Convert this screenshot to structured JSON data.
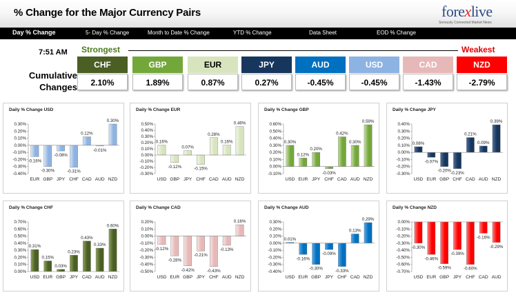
{
  "header": {
    "title": "% Change for the Major Currency Pairs"
  },
  "logo": {
    "brand_left": "fore",
    "brand_x": "x",
    "brand_right": "live",
    "tagline": "Seriously Connected Market News"
  },
  "tabs": [
    {
      "label": "Day % Change",
      "active": true
    },
    {
      "label": "5- Day % Change"
    },
    {
      "label": "Month to Date % Change"
    },
    {
      "label": "YTD % Change"
    },
    {
      "label": "Data Sheet"
    },
    {
      "label": "EOD % Change"
    }
  ],
  "summary": {
    "time": "7:51 AM",
    "label": "Cumulative Changes",
    "strongest_label": "Strongest",
    "weakest_label": "Weakest",
    "rankings": [
      {
        "currency": "CHF",
        "value": "2.10%",
        "bg": "#4b5e24",
        "fg": "#ffffff"
      },
      {
        "currency": "GBP",
        "value": "1.89%",
        "bg": "#74a73a",
        "fg": "#ffffff"
      },
      {
        "currency": "EUR",
        "value": "0.87%",
        "bg": "#d7e4bd",
        "fg": "#000000"
      },
      {
        "currency": "JPY",
        "value": "0.27%",
        "bg": "#17365d",
        "fg": "#ffffff"
      },
      {
        "currency": "AUD",
        "value": "-0.45%",
        "bg": "#0070c0",
        "fg": "#ffffff"
      },
      {
        "currency": "USD",
        "value": "-0.45%",
        "bg": "#8db3e2",
        "fg": "#ffffff"
      },
      {
        "currency": "CAD",
        "value": "-1.43%",
        "bg": "#e6b9b8",
        "fg": "#ffffff"
      },
      {
        "currency": "NZD",
        "value": "-2.79%",
        "bg": "#ff0000",
        "fg": "#ffffff"
      }
    ]
  },
  "chart_data": [
    {
      "type": "bar",
      "title": "Daily % Change USD",
      "color": "#8db3e2",
      "color_light": "#dce7f5",
      "categories": [
        "EUR",
        "GBP",
        "JPY",
        "CHF",
        "CAD",
        "AUD",
        "NZD"
      ],
      "values": [
        -0.16,
        -0.3,
        -0.08,
        -0.31,
        0.12,
        -0.01,
        0.3
      ],
      "labels": [
        "-0.16%",
        "-0.30%",
        "-0.08%",
        "-0.31%",
        "0.12%",
        "-0.01%",
        "0.30%"
      ],
      "ylim": [
        -0.4,
        0.3
      ],
      "yticks": [
        0.3,
        0.2,
        0.1,
        0.0,
        -0.1,
        -0.2,
        -0.3,
        -0.4
      ],
      "ytick_labels": [
        "0.30%",
        "0.20%",
        "0.10%",
        "0.00%",
        "-0.10%",
        "-0.20%",
        "-0.30%",
        "-0.40%"
      ]
    },
    {
      "type": "bar",
      "title": "Daily % Change EUR",
      "color": "#d7e4bd",
      "color_light": "#f3f8e9",
      "categories": [
        "USD",
        "GBP",
        "JPY",
        "CHF",
        "CAD",
        "AUD",
        "NZD"
      ],
      "values": [
        0.16,
        -0.12,
        0.07,
        -0.15,
        0.28,
        0.16,
        0.46
      ],
      "labels": [
        "0.16%",
        "-0.12%",
        "0.07%",
        "-0.15%",
        "0.28%",
        "0.16%",
        "0.46%"
      ],
      "ylim": [
        -0.3,
        0.5
      ],
      "yticks": [
        0.5,
        0.4,
        0.3,
        0.2,
        0.1,
        0.0,
        -0.1,
        -0.2,
        -0.3
      ],
      "ytick_labels": [
        "0.50%",
        "0.40%",
        "0.30%",
        "0.20%",
        "0.10%",
        "0.00%",
        "-0.10%",
        "-0.20%",
        "-0.30%"
      ]
    },
    {
      "type": "bar",
      "title": "Daily % Change GBP",
      "color": "#74a73a",
      "color_light": "#c6e0a6",
      "categories": [
        "USD",
        "EUR",
        "JPY",
        "CHF",
        "CAD",
        "AUD",
        "NZD"
      ],
      "values": [
        0.3,
        0.12,
        0.2,
        -0.03,
        0.42,
        0.3,
        0.59
      ],
      "labels": [
        "0.30%",
        "0.12%",
        "0.20%",
        "-0.03%",
        "0.42%",
        "0.30%",
        "0.59%"
      ],
      "ylim": [
        -0.1,
        0.6
      ],
      "yticks": [
        0.6,
        0.5,
        0.4,
        0.3,
        0.2,
        0.1,
        0.0,
        -0.1
      ],
      "ytick_labels": [
        "0.60%",
        "0.50%",
        "0.40%",
        "0.30%",
        "0.20%",
        "0.10%",
        "0.00%",
        "-0.10%"
      ]
    },
    {
      "type": "bar",
      "title": "Daily % Change JPY",
      "color": "#17365d",
      "color_light": "#4f6f99",
      "categories": [
        "USD",
        "EUR",
        "GBP",
        "CHF",
        "CAD",
        "AUD",
        "NZD"
      ],
      "values": [
        0.08,
        -0.07,
        -0.2,
        -0.23,
        0.21,
        0.09,
        0.39
      ],
      "labels": [
        "0.08%",
        "-0.07%",
        "-0.20%",
        "-0.23%",
        "0.21%",
        "0.09%",
        "0.39%"
      ],
      "ylim": [
        -0.3,
        0.4
      ],
      "yticks": [
        0.4,
        0.3,
        0.2,
        0.1,
        0.0,
        -0.1,
        -0.2,
        -0.3
      ],
      "ytick_labels": [
        "0.40%",
        "0.30%",
        "0.20%",
        "0.10%",
        "0.00%",
        "-0.10%",
        "-0.20%",
        "-0.30%"
      ]
    },
    {
      "type": "bar",
      "title": "Daily % Change CHF",
      "color": "#4b5e24",
      "color_light": "#8ea35c",
      "categories": [
        "USD",
        "EUR",
        "GBP",
        "JPY",
        "CAD",
        "AUD",
        "NZD"
      ],
      "values": [
        0.31,
        0.15,
        0.03,
        0.23,
        0.43,
        0.33,
        0.6
      ],
      "labels": [
        "0.31%",
        "0.15%",
        "0.03%",
        "0.23%",
        "0.43%",
        "0.33%",
        "0.60%"
      ],
      "ylim": [
        0.0,
        0.7
      ],
      "yticks": [
        0.7,
        0.6,
        0.5,
        0.4,
        0.3,
        0.2,
        0.1,
        0.0
      ],
      "ytick_labels": [
        "0.70%",
        "0.60%",
        "0.50%",
        "0.40%",
        "0.30%",
        "0.20%",
        "0.10%",
        "0.00%"
      ]
    },
    {
      "type": "bar",
      "title": "Daily % Change CAD",
      "color": "#e6b9b8",
      "color_light": "#f8e6e6",
      "categories": [
        "USD",
        "EUR",
        "GBP",
        "JPY",
        "CHF",
        "AUD",
        "NZD"
      ],
      "values": [
        -0.12,
        -0.28,
        -0.42,
        -0.21,
        -0.43,
        -0.13,
        0.16
      ],
      "labels": [
        "-0.12%",
        "-0.28%",
        "-0.42%",
        "-0.21%",
        "-0.43%",
        "-0.13%",
        "0.16%"
      ],
      "ylim": [
        -0.5,
        0.2
      ],
      "yticks": [
        0.2,
        0.1,
        0.0,
        -0.1,
        -0.2,
        -0.3,
        -0.4,
        -0.5
      ],
      "ytick_labels": [
        "0.20%",
        "0.10%",
        "0.00%",
        "-0.10%",
        "-0.20%",
        "-0.30%",
        "-0.40%",
        "-0.50%"
      ]
    },
    {
      "type": "bar",
      "title": "Daily % Change AUD",
      "color": "#0070c0",
      "color_light": "#5aa9e6",
      "categories": [
        "USD",
        "EUR",
        "GBP",
        "JPY",
        "CHF",
        "CAD",
        "NZD"
      ],
      "values": [
        0.01,
        -0.16,
        -0.3,
        -0.09,
        -0.33,
        0.13,
        0.29
      ],
      "labels": [
        "0.01%",
        "-0.16%",
        "-0.30%",
        "-0.09%",
        "-0.33%",
        "0.13%",
        "0.29%"
      ],
      "ylim": [
        -0.4,
        0.3
      ],
      "yticks": [
        0.3,
        0.2,
        0.1,
        0.0,
        -0.1,
        -0.2,
        -0.3,
        -0.4
      ],
      "ytick_labels": [
        "0.30%",
        "0.20%",
        "0.10%",
        "0.00%",
        "-0.10%",
        "-0.20%",
        "-0.30%",
        "-0.40%"
      ]
    },
    {
      "type": "bar",
      "title": "Daily % Change NZD",
      "color": "#ff0000",
      "color_light": "#ff8080",
      "categories": [
        "USD",
        "EUR",
        "GBP",
        "JPY",
        "CHF",
        "CAD",
        "AUD"
      ],
      "values": [
        -0.3,
        -0.46,
        -0.59,
        -0.39,
        -0.6,
        -0.16,
        -0.29
      ],
      "labels": [
        "-0.30%",
        "-0.46%",
        "-0.59%",
        "-0.39%",
        "-0.60%",
        "-0.16%",
        "-0.29%"
      ],
      "ylim": [
        -0.7,
        0.0
      ],
      "yticks": [
        0.0,
        -0.1,
        -0.2,
        -0.3,
        -0.4,
        -0.5,
        -0.6,
        -0.7
      ],
      "ytick_labels": [
        "0.00%",
        "-0.10%",
        "-0.20%",
        "-0.30%",
        "-0.40%",
        "-0.50%",
        "-0.60%",
        "-0.70%"
      ]
    }
  ]
}
